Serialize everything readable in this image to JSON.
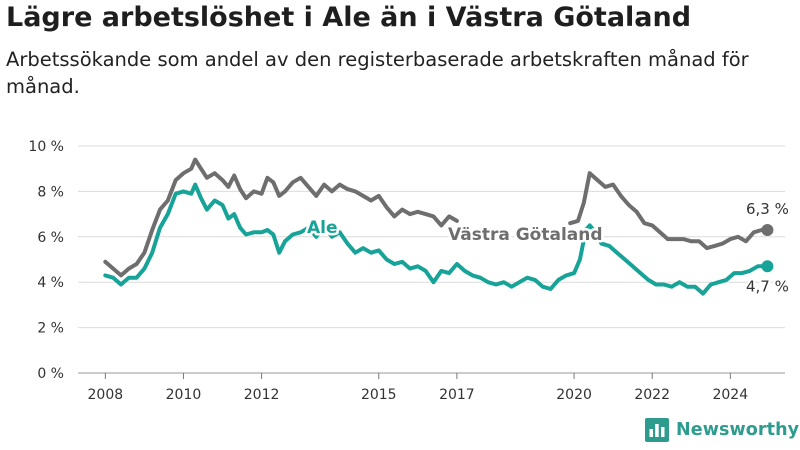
{
  "title": "Lägre arbetslöshet i Ale än i Västra Götaland",
  "subtitle": "Arbetssökande som andel av den registerbaserade arbetskraften månad för månad.",
  "brand": {
    "name": "Newsworthy",
    "icon": "bar-chart-logo-icon"
  },
  "colors": {
    "ale": "#17a398",
    "vg": "#6e6e6e",
    "grid": "#dcdcdc",
    "brand": "#2d9c8e"
  },
  "chart_data": {
    "type": "line",
    "title": "Lägre arbetslöshet i Ale än i Västra Götaland",
    "xlabel": "",
    "ylabel": "",
    "xlim": [
      2007.3,
      2025.4
    ],
    "ylim": [
      0,
      10
    ],
    "grid": true,
    "x_ticks": [
      {
        "value": 2008,
        "label": "2008"
      },
      {
        "value": 2010,
        "label": "2010"
      },
      {
        "value": 2012,
        "label": "2012"
      },
      {
        "value": 2015,
        "label": "2015"
      },
      {
        "value": 2017,
        "label": "2017"
      },
      {
        "value": 2020,
        "label": "2020"
      },
      {
        "value": 2022,
        "label": "2022"
      },
      {
        "value": 2024,
        "label": "2024"
      }
    ],
    "y_ticks": [
      {
        "value": 0,
        "label": "0 %"
      },
      {
        "value": 2,
        "label": "2 %"
      },
      {
        "value": 4,
        "label": "4 %"
      },
      {
        "value": 6,
        "label": "6 %"
      },
      {
        "value": 8,
        "label": "8 %"
      },
      {
        "value": 10,
        "label": "10 %"
      }
    ],
    "series": [
      {
        "name": "Västra Götaland",
        "color": "#6e6e6e",
        "direct_label": "Västra Götaland",
        "end_label": "6,3 %",
        "points": [
          [
            2008.0,
            4.9
          ],
          [
            2008.2,
            4.6
          ],
          [
            2008.4,
            4.3
          ],
          [
            2008.6,
            4.6
          ],
          [
            2008.8,
            4.8
          ],
          [
            2009.0,
            5.3
          ],
          [
            2009.2,
            6.3
          ],
          [
            2009.4,
            7.2
          ],
          [
            2009.6,
            7.6
          ],
          [
            2009.8,
            8.5
          ],
          [
            2010.0,
            8.8
          ],
          [
            2010.2,
            9.0
          ],
          [
            2010.3,
            9.4
          ],
          [
            2010.45,
            9.0
          ],
          [
            2010.6,
            8.6
          ],
          [
            2010.8,
            8.8
          ],
          [
            2011.0,
            8.5
          ],
          [
            2011.15,
            8.2
          ],
          [
            2011.3,
            8.7
          ],
          [
            2011.45,
            8.1
          ],
          [
            2011.6,
            7.7
          ],
          [
            2011.8,
            8.0
          ],
          [
            2012.0,
            7.9
          ],
          [
            2012.15,
            8.6
          ],
          [
            2012.3,
            8.4
          ],
          [
            2012.45,
            7.8
          ],
          [
            2012.6,
            8.0
          ],
          [
            2012.8,
            8.4
          ],
          [
            2013.0,
            8.6
          ],
          [
            2013.2,
            8.2
          ],
          [
            2013.4,
            7.8
          ],
          [
            2013.6,
            8.3
          ],
          [
            2013.8,
            8.0
          ],
          [
            2014.0,
            8.3
          ],
          [
            2014.2,
            8.1
          ],
          [
            2014.4,
            8.0
          ],
          [
            2014.6,
            7.8
          ],
          [
            2014.8,
            7.6
          ],
          [
            2015.0,
            7.8
          ],
          [
            2015.2,
            7.3
          ],
          [
            2015.4,
            6.9
          ],
          [
            2015.6,
            7.2
          ],
          [
            2015.8,
            7.0
          ],
          [
            2016.0,
            7.1
          ],
          [
            2016.2,
            7.0
          ],
          [
            2016.4,
            6.9
          ],
          [
            2016.6,
            6.5
          ],
          [
            2016.8,
            6.9
          ],
          [
            2017.0,
            6.7
          ]
        ],
        "points_after_gap": [
          [
            2019.9,
            6.6
          ],
          [
            2020.1,
            6.7
          ],
          [
            2020.25,
            7.5
          ],
          [
            2020.4,
            8.8
          ],
          [
            2020.6,
            8.5
          ],
          [
            2020.8,
            8.2
          ],
          [
            2021.0,
            8.3
          ],
          [
            2021.2,
            7.8
          ],
          [
            2021.4,
            7.4
          ],
          [
            2021.6,
            7.1
          ],
          [
            2021.8,
            6.6
          ],
          [
            2022.0,
            6.5
          ],
          [
            2022.2,
            6.2
          ],
          [
            2022.4,
            5.9
          ],
          [
            2022.6,
            5.9
          ],
          [
            2022.8,
            5.9
          ],
          [
            2023.0,
            5.8
          ],
          [
            2023.2,
            5.8
          ],
          [
            2023.4,
            5.5
          ],
          [
            2023.6,
            5.6
          ],
          [
            2023.8,
            5.7
          ],
          [
            2024.0,
            5.9
          ],
          [
            2024.2,
            6.0
          ],
          [
            2024.4,
            5.8
          ],
          [
            2024.6,
            6.2
          ],
          [
            2024.8,
            6.3
          ],
          [
            2024.95,
            6.3
          ]
        ]
      },
      {
        "name": "Ale",
        "color": "#17a398",
        "direct_label": "Ale",
        "end_label": "4,7 %",
        "points": [
          [
            2008.0,
            4.3
          ],
          [
            2008.2,
            4.2
          ],
          [
            2008.4,
            3.9
          ],
          [
            2008.6,
            4.2
          ],
          [
            2008.8,
            4.2
          ],
          [
            2009.0,
            4.6
          ],
          [
            2009.2,
            5.3
          ],
          [
            2009.4,
            6.4
          ],
          [
            2009.6,
            7.0
          ],
          [
            2009.8,
            7.9
          ],
          [
            2010.0,
            8.0
          ],
          [
            2010.2,
            7.9
          ],
          [
            2010.3,
            8.3
          ],
          [
            2010.45,
            7.7
          ],
          [
            2010.6,
            7.2
          ],
          [
            2010.8,
            7.6
          ],
          [
            2011.0,
            7.4
          ],
          [
            2011.15,
            6.8
          ],
          [
            2011.3,
            7.0
          ],
          [
            2011.45,
            6.4
          ],
          [
            2011.6,
            6.1
          ],
          [
            2011.8,
            6.2
          ],
          [
            2012.0,
            6.2
          ],
          [
            2012.15,
            6.3
          ],
          [
            2012.3,
            6.1
          ],
          [
            2012.45,
            5.3
          ],
          [
            2012.6,
            5.8
          ],
          [
            2012.8,
            6.1
          ],
          [
            2013.0,
            6.2
          ],
          [
            2013.2,
            6.4
          ],
          [
            2013.4,
            6.0
          ],
          [
            2013.6,
            6.5
          ],
          [
            2013.8,
            6.0
          ],
          [
            2014.0,
            6.2
          ],
          [
            2014.2,
            5.7
          ],
          [
            2014.4,
            5.3
          ],
          [
            2014.6,
            5.5
          ],
          [
            2014.8,
            5.3
          ],
          [
            2015.0,
            5.4
          ],
          [
            2015.2,
            5.0
          ],
          [
            2015.4,
            4.8
          ],
          [
            2015.6,
            4.9
          ],
          [
            2015.8,
            4.6
          ],
          [
            2016.0,
            4.7
          ],
          [
            2016.2,
            4.5
          ],
          [
            2016.4,
            4.0
          ],
          [
            2016.6,
            4.5
          ],
          [
            2016.8,
            4.4
          ],
          [
            2017.0,
            4.8
          ],
          [
            2017.2,
            4.5
          ],
          [
            2017.4,
            4.3
          ],
          [
            2017.6,
            4.2
          ],
          [
            2017.8,
            4.0
          ],
          [
            2018.0,
            3.9
          ],
          [
            2018.2,
            4.0
          ],
          [
            2018.4,
            3.8
          ],
          [
            2018.6,
            4.0
          ],
          [
            2018.8,
            4.2
          ],
          [
            2019.0,
            4.1
          ],
          [
            2019.2,
            3.8
          ],
          [
            2019.4,
            3.7
          ],
          [
            2019.6,
            4.1
          ],
          [
            2019.8,
            4.3
          ],
          [
            2020.0,
            4.4
          ],
          [
            2020.15,
            5.0
          ],
          [
            2020.3,
            6.3
          ],
          [
            2020.4,
            6.5
          ],
          [
            2020.55,
            6.2
          ],
          [
            2020.7,
            5.7
          ],
          [
            2020.9,
            5.6
          ],
          [
            2021.1,
            5.3
          ],
          [
            2021.3,
            5.0
          ],
          [
            2021.5,
            4.7
          ],
          [
            2021.7,
            4.4
          ],
          [
            2021.9,
            4.1
          ],
          [
            2022.1,
            3.9
          ],
          [
            2022.3,
            3.9
          ],
          [
            2022.5,
            3.8
          ],
          [
            2022.7,
            4.0
          ],
          [
            2022.9,
            3.8
          ],
          [
            2023.1,
            3.8
          ],
          [
            2023.3,
            3.5
          ],
          [
            2023.5,
            3.9
          ],
          [
            2023.7,
            4.0
          ],
          [
            2023.9,
            4.1
          ],
          [
            2024.1,
            4.4
          ],
          [
            2024.3,
            4.4
          ],
          [
            2024.5,
            4.5
          ],
          [
            2024.7,
            4.7
          ],
          [
            2024.95,
            4.7
          ]
        ]
      }
    ]
  }
}
